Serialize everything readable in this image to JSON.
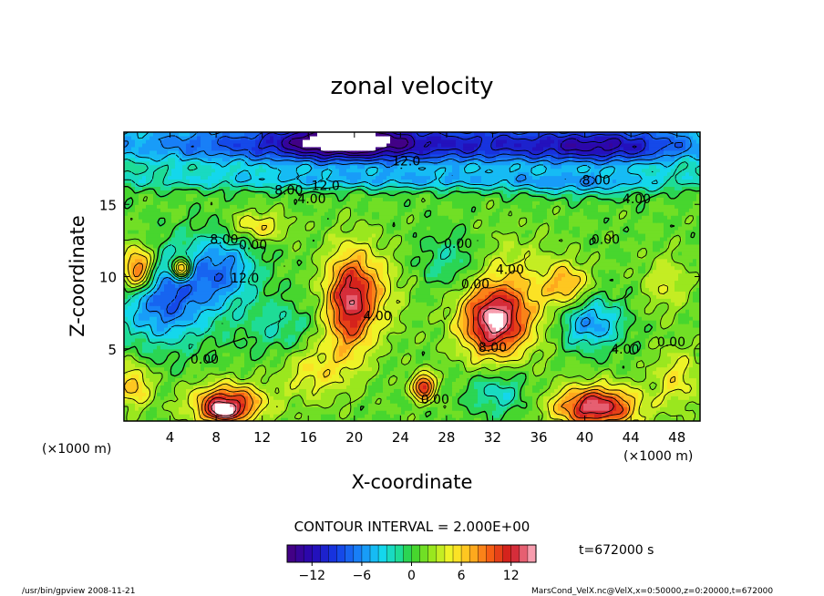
{
  "chart_data": {
    "type": "heatmap",
    "title": "zonal velocity",
    "xlabel": "X-coordinate",
    "ylabel": "Z-coordinate",
    "x_unit_left": "(×1000 m)",
    "x_unit_right": "(×1000 m)",
    "y_unit": "(×1000 m)",
    "xlim": [
      0,
      50
    ],
    "ylim": [
      0,
      20
    ],
    "x_ticks": [
      4,
      8,
      12,
      16,
      20,
      24,
      28,
      32,
      36,
      40,
      44,
      48
    ],
    "y_ticks": [
      5,
      10,
      15
    ],
    "contour_interval_text": "CONTOUR INTERVAL = 2.000E+00",
    "colorbar": {
      "min": -15,
      "max": 15,
      "ticks": [
        -12,
        -6,
        0,
        6,
        12
      ]
    },
    "contour_labels": [
      {
        "text": "12.0",
        "x": 24.5,
        "y": 18.0
      },
      {
        "text": "12.0",
        "x": 17.5,
        "y": 16.3
      },
      {
        "text": "8.00",
        "x": 41,
        "y": 16.7
      },
      {
        "text": "4.00",
        "x": 44.5,
        "y": 15.4
      },
      {
        "text": "8.00",
        "x": 14.3,
        "y": 16.0
      },
      {
        "text": "4.00",
        "x": 16.3,
        "y": 15.4
      },
      {
        "text": "8.00",
        "x": 8.7,
        "y": 12.6
      },
      {
        "text": "0.00",
        "x": 11.2,
        "y": 12.2
      },
      {
        "text": "0.00",
        "x": 29,
        "y": 12.3
      },
      {
        "text": "0.00",
        "x": 41.8,
        "y": 12.6
      },
      {
        "text": "12.0",
        "x": 10.5,
        "y": 9.9
      },
      {
        "text": "4.00",
        "x": 33.5,
        "y": 10.5
      },
      {
        "text": "0.00",
        "x": 30.5,
        "y": 9.5
      },
      {
        "text": "4.00",
        "x": 22,
        "y": 7.3
      },
      {
        "text": "0.00",
        "x": 7,
        "y": 4.3
      },
      {
        "text": "8.00",
        "x": 32,
        "y": 5.1
      },
      {
        "text": "4.00",
        "x": 43.5,
        "y": 5.0
      },
      {
        "text": "0.00",
        "x": 47.5,
        "y": 5.5
      },
      {
        "text": "0.00",
        "x": 27,
        "y": 1.5
      }
    ],
    "field_features": [
      {
        "x": 3.5,
        "y": 8.5,
        "amp": -9,
        "sx": 4.0,
        "sz": 3.0
      },
      {
        "x": 8.5,
        "y": 10.5,
        "amp": -7,
        "sx": 3.0,
        "sz": 2.5
      },
      {
        "x": 1.2,
        "y": 10.5,
        "amp": 12,
        "sx": 1.5,
        "sz": 1.6
      },
      {
        "x": 5,
        "y": 10.6,
        "amp": 13,
        "sx": 0.8,
        "sz": 0.7
      },
      {
        "x": 11.5,
        "y": 13.5,
        "amp": 5,
        "sx": 2.5,
        "sz": 1.0
      },
      {
        "x": 19.5,
        "y": 8.0,
        "amp": 9,
        "sx": 2.0,
        "sz": 3.5
      },
      {
        "x": 21.0,
        "y": 9.0,
        "amp": 5,
        "sx": 3.0,
        "sz": 3.0
      },
      {
        "x": 16.5,
        "y": 3.5,
        "amp": 4,
        "sx": 3.0,
        "sz": 2.0
      },
      {
        "x": 9,
        "y": 1.2,
        "amp": 12,
        "sx": 3.0,
        "sz": 1.3
      },
      {
        "x": 8.5,
        "y": 0.6,
        "amp": 7,
        "sx": 1.2,
        "sz": 0.6
      },
      {
        "x": 26,
        "y": 2.4,
        "amp": 11,
        "sx": 1.0,
        "sz": 0.9
      },
      {
        "x": 32,
        "y": 6.8,
        "amp": 11,
        "sx": 2.7,
        "sz": 2.3
      },
      {
        "x": 33.5,
        "y": 8.5,
        "amp": 5,
        "sx": 4.0,
        "sz": 3.5
      },
      {
        "x": 38.5,
        "y": 9.5,
        "amp": 6,
        "sx": 1.8,
        "sz": 1.5
      },
      {
        "x": 41,
        "y": 1.0,
        "amp": 13,
        "sx": 3.5,
        "sz": 1.4
      },
      {
        "x": 0.8,
        "y": 2.5,
        "amp": 6,
        "sx": 1.5,
        "sz": 1.5
      },
      {
        "x": 48,
        "y": 3.0,
        "amp": 4,
        "sx": 2.0,
        "sz": 2.0
      },
      {
        "x": 40.5,
        "y": 6.8,
        "amp": -7,
        "sx": 2.7,
        "sz": 1.7
      },
      {
        "x": 32.5,
        "y": 2.0,
        "amp": -4,
        "sx": 2.5,
        "sz": 1.5
      },
      {
        "x": 28.5,
        "y": 11.0,
        "amp": -3,
        "sx": 3.0,
        "sz": 2.0
      },
      {
        "x": 13.5,
        "y": 6.5,
        "amp": -3,
        "sx": 3.0,
        "sz": 2.0
      },
      {
        "x": 47,
        "y": 9.5,
        "amp": 3,
        "sx": 2.0,
        "sz": 2.0
      },
      {
        "x": 25,
        "y": 19.2,
        "amp": -12,
        "sx": 30.0,
        "sz": 1.6
      },
      {
        "x": 19,
        "y": 19.5,
        "amp": -9,
        "sx": 5.0,
        "sz": 1.2
      },
      {
        "x": 42,
        "y": 19.0,
        "amp": -5,
        "sx": 6.0,
        "sz": 1.2
      },
      {
        "x": 25,
        "y": 16.7,
        "amp": -5,
        "sx": 30.0,
        "sz": 0.7
      },
      {
        "x": 40,
        "y": 16.2,
        "amp": -3,
        "sx": 6.0,
        "sz": 0.8
      }
    ]
  },
  "time_label": "t=672000 s",
  "footer": {
    "left": "/usr/bin/gpview   2008-11-21",
    "right": "MarsCond_VelX.nc@VelX,x=0:50000,z=0:20000,t=672000"
  }
}
